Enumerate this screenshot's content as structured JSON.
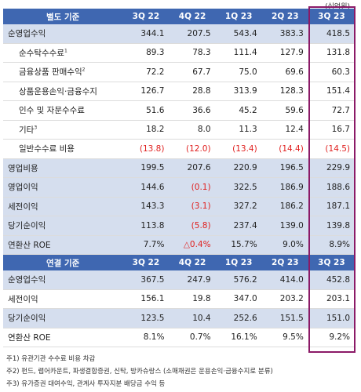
{
  "unit": "(십억원)",
  "separate": {
    "header": [
      "별도 기준",
      "3Q 22",
      "4Q 22",
      "1Q 23",
      "2Q 23",
      "3Q 23"
    ],
    "rows": [
      {
        "label": "순영업수익",
        "sup": "",
        "values": [
          "344.1",
          "207.5",
          "543.4",
          "383.3",
          "418.5"
        ],
        "neg": [
          false,
          false,
          false,
          false,
          false
        ]
      },
      {
        "label": "순수탁수수료",
        "sup": "1",
        "values": [
          "89.3",
          "78.3",
          "111.4",
          "127.9",
          "131.8"
        ],
        "neg": [
          false,
          false,
          false,
          false,
          false
        ]
      },
      {
        "label": "금융상품 판매수익",
        "sup": "2",
        "values": [
          "72.2",
          "67.7",
          "75.0",
          "69.6",
          "60.3"
        ],
        "neg": [
          false,
          false,
          false,
          false,
          false
        ]
      },
      {
        "label": "상품운용손익·금융수지",
        "sup": "",
        "values": [
          "126.7",
          "28.8",
          "313.9",
          "128.3",
          "151.4"
        ],
        "neg": [
          false,
          false,
          false,
          false,
          false
        ]
      },
      {
        "label": "인수 및 자문수수료",
        "sup": "",
        "values": [
          "51.6",
          "36.6",
          "45.2",
          "59.6",
          "72.7"
        ],
        "neg": [
          false,
          false,
          false,
          false,
          false
        ]
      },
      {
        "label": "기타",
        "sup": "3",
        "values": [
          "18.2",
          "8.0",
          "11.3",
          "12.4",
          "16.7"
        ],
        "neg": [
          false,
          false,
          false,
          false,
          false
        ]
      },
      {
        "label": "일반수수료 비용",
        "sup": "",
        "values": [
          "(13.8)",
          "(12.0)",
          "(13.4)",
          "(14.4)",
          "(14.5)"
        ],
        "neg": [
          true,
          true,
          true,
          true,
          true
        ]
      },
      {
        "label": "영업비용",
        "sup": "",
        "values": [
          "199.5",
          "207.6",
          "220.9",
          "196.5",
          "229.9"
        ],
        "neg": [
          false,
          false,
          false,
          false,
          false
        ]
      },
      {
        "label": "영업이익",
        "sup": "",
        "values": [
          "144.6",
          "(0.1)",
          "322.5",
          "186.9",
          "188.6"
        ],
        "neg": [
          false,
          true,
          false,
          false,
          false
        ]
      },
      {
        "label": "세전이익",
        "sup": "",
        "values": [
          "143.3",
          "(3.1)",
          "327.2",
          "186.2",
          "187.1"
        ],
        "neg": [
          false,
          true,
          false,
          false,
          false
        ]
      },
      {
        "label": "당기순이익",
        "sup": "",
        "values": [
          "113.8",
          "(5.8)",
          "237.4",
          "139.0",
          "139.8"
        ],
        "neg": [
          false,
          true,
          false,
          false,
          false
        ]
      },
      {
        "label": "연환산 ROE",
        "sup": "",
        "values": [
          "7.7%",
          "△0.4%",
          "15.7%",
          "9.0%",
          "8.9%"
        ],
        "neg": [
          false,
          true,
          false,
          false,
          false
        ]
      }
    ]
  },
  "consolidated": {
    "header": [
      "연결 기준",
      "3Q 22",
      "4Q 22",
      "1Q 23",
      "2Q 23",
      "3Q 23"
    ],
    "rows": [
      {
        "label": "순영업수익",
        "sup": "",
        "values": [
          "367.5",
          "247.9",
          "576.2",
          "414.0",
          "452.8"
        ],
        "neg": [
          false,
          false,
          false,
          false,
          false
        ]
      },
      {
        "label": "세전이익",
        "sup": "",
        "values": [
          "156.1",
          "19.8",
          "347.0",
          "203.2",
          "203.1"
        ],
        "neg": [
          false,
          false,
          false,
          false,
          false
        ]
      },
      {
        "label": "당기순이익",
        "sup": "",
        "values": [
          "123.5",
          "10.4",
          "252.6",
          "151.5",
          "151.0"
        ],
        "neg": [
          false,
          false,
          false,
          false,
          false
        ]
      },
      {
        "label": "연환산 ROE",
        "sup": "",
        "values": [
          "8.1%",
          "0.7%",
          "16.1%",
          "9.5%",
          "9.2%"
        ],
        "neg": [
          false,
          false,
          false,
          false,
          false
        ]
      }
    ]
  },
  "notes": [
    "주1) 유관기관 수수료 비용 차감",
    "주2) 펀드, 랩어카운트, 파생결합증권, 신탁, 방카슈랑스 (소매채권은 운용손익·금융수지로 분류)",
    "주3) 유가증권 대여수익, 관계사 투자지분 배당금 수익 등"
  ],
  "colors": {
    "header_bg": "#3f67b1",
    "shade_bg": "#d5deee",
    "negative": "#e0201f",
    "highlight_border": "#8b1a67"
  }
}
